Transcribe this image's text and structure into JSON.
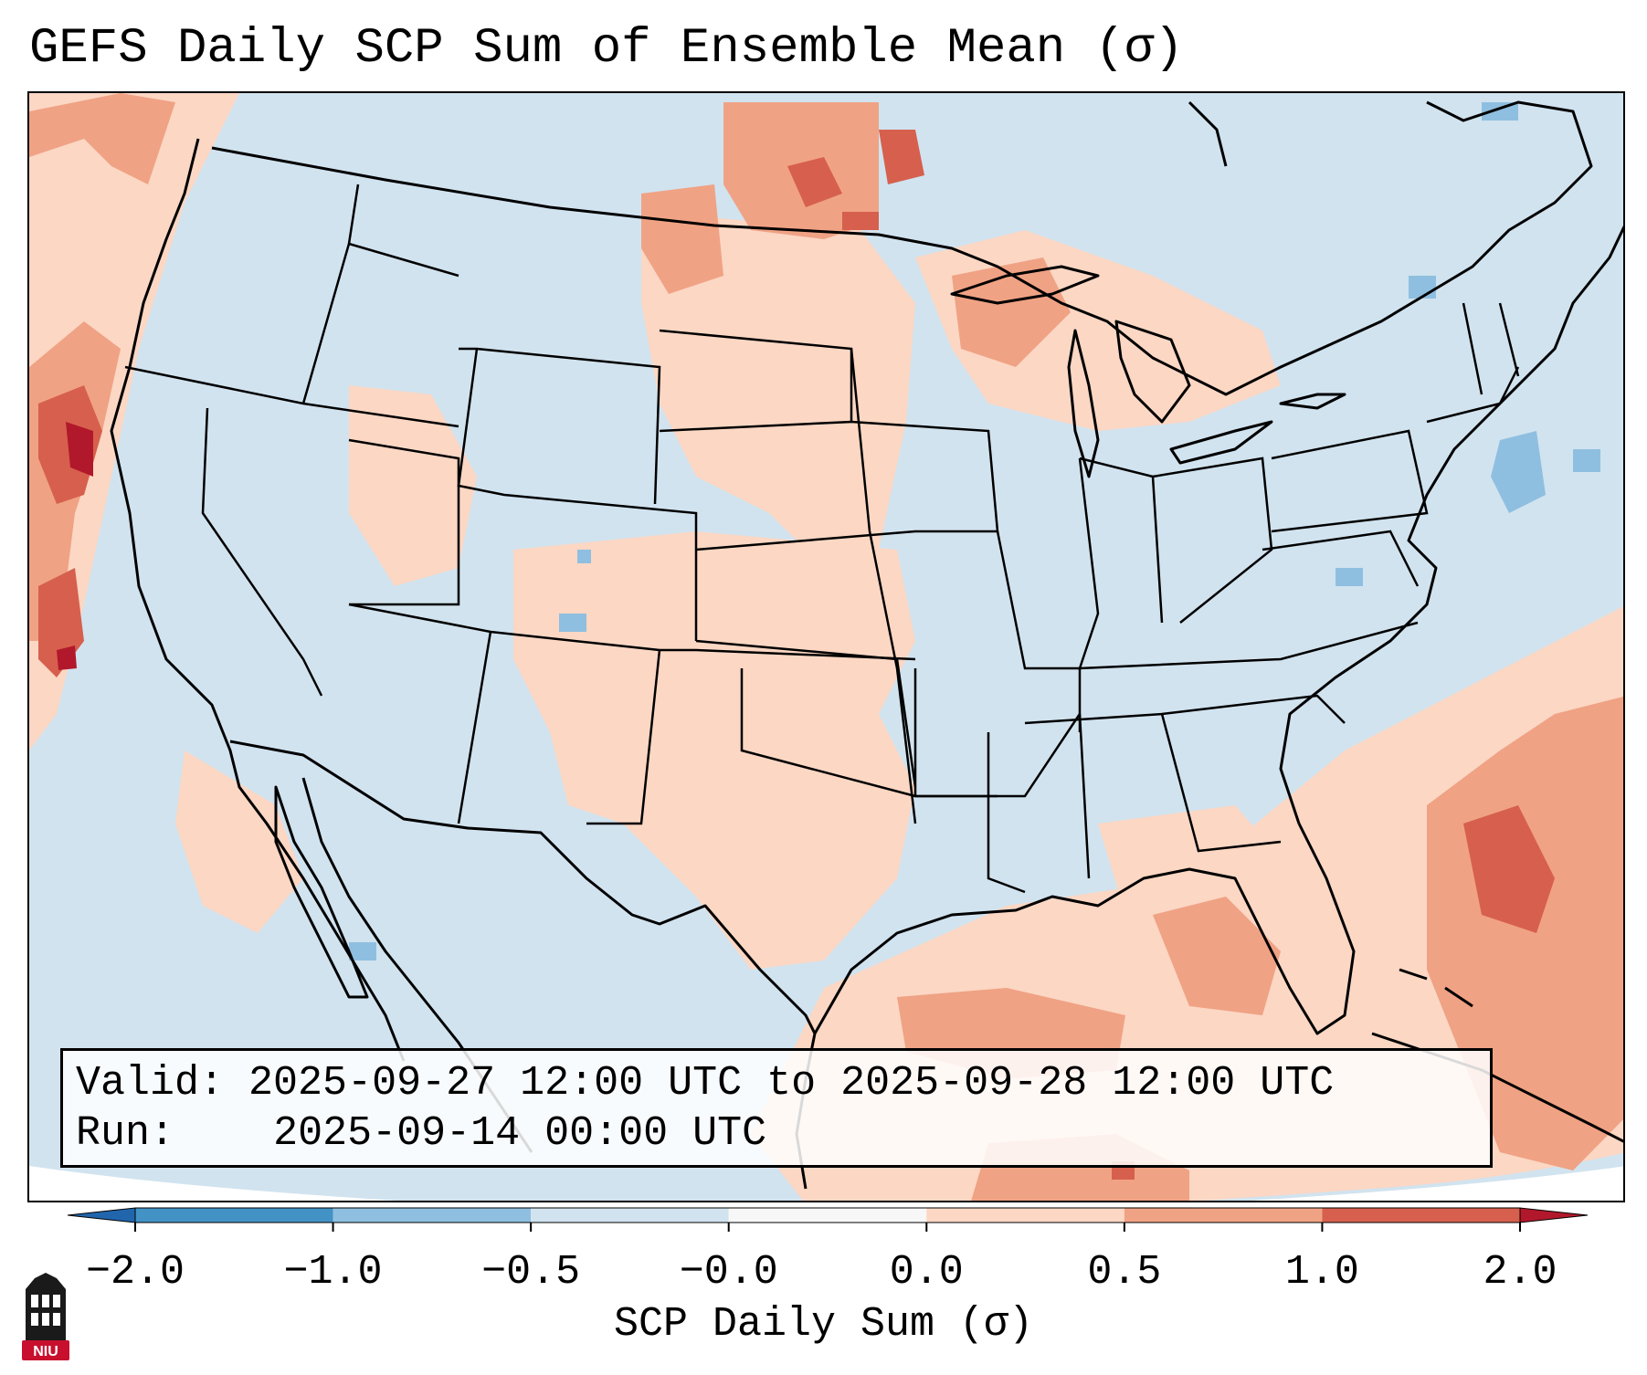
{
  "title": "GEFS Daily SCP Sum of Ensemble Mean (σ)",
  "info": {
    "valid_label": "Valid:",
    "valid_value": "2025-09-27 12:00 UTC to 2025-09-28 12:00 UTC",
    "run_label": "Run:",
    "run_value": "2025-09-14 00:00 UTC"
  },
  "colorbar": {
    "label": "SCP Daily Sum (σ)",
    "ticks": [
      "−2.0",
      "−1.0",
      "−0.5",
      "−0.0",
      "0.0",
      "0.5",
      "1.0",
      "2.0"
    ],
    "bins": [
      {
        "lo": -2.0,
        "hi": -1.0,
        "color": "#4292c6"
      },
      {
        "lo": -1.0,
        "hi": -0.5,
        "color": "#8fbfe0"
      },
      {
        "lo": -0.5,
        "hi": 0.0,
        "color": "#d1e3ef"
      },
      {
        "lo": 0.0,
        "hi": 0.0,
        "color": "#f7f7f7"
      },
      {
        "lo": 0.0,
        "hi": 0.5,
        "color": "#fbd7c4"
      },
      {
        "lo": 0.5,
        "hi": 1.0,
        "color": "#f0a284"
      },
      {
        "lo": 1.0,
        "hi": 2.0,
        "color": "#d6604d"
      }
    ],
    "under_color": "#2166ac",
    "over_color": "#b2182b"
  },
  "map": {
    "background_color": "#d1e3ef",
    "outline_color": "#000000",
    "extent": "Contiguous United States, southern Canada, northern Mexico, Gulf of Mexico, western Atlantic"
  },
  "logo": {
    "text": "NIU",
    "color": "#c8102e"
  }
}
